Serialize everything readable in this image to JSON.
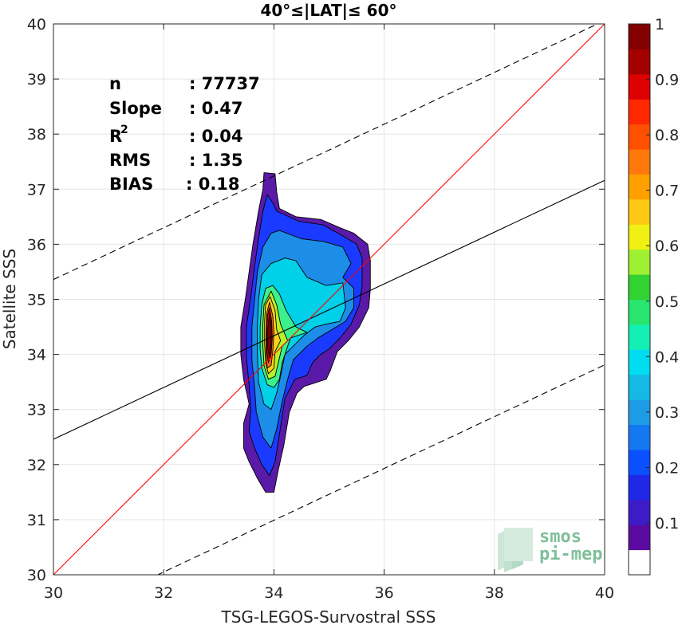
{
  "chart_data": {
    "type": "contour",
    "title": "40°≤|LAT|≤ 60°",
    "xlabel": "TSG-LEGOS-Survostral SSS",
    "ylabel": "Satellite SSS",
    "xlim": [
      30,
      40
    ],
    "ylim": [
      30,
      40
    ],
    "xticks": [
      "30",
      "32",
      "34",
      "36",
      "38",
      "40"
    ],
    "yticks": [
      "30",
      "31",
      "32",
      "33",
      "34",
      "35",
      "36",
      "37",
      "38",
      "39",
      "40"
    ],
    "grid": true,
    "stats": [
      {
        "name": "n",
        "value": ": 77737"
      },
      {
        "name": "Slope",
        "value": ": 0.47"
      },
      {
        "name": "R",
        "sup": "2",
        "value": ": 0.04"
      },
      {
        "name": "RMS",
        "value": ": 1.35"
      },
      {
        "name": "BIAS",
        "value": ": 0.18"
      }
    ],
    "lines": {
      "identity": {
        "color": "#ff0000",
        "slope": 1,
        "intercept": 0
      },
      "fit": {
        "color": "#000000",
        "slope": 0.47,
        "intercept": 18.36
      },
      "fit_upper": {
        "color": "#000000",
        "style": "dashed",
        "slope": 0.47,
        "intercept": 21.26
      },
      "fit_lower": {
        "color": "#000000",
        "style": "dashed",
        "slope": 0.47,
        "intercept": 15.01
      }
    },
    "contour_levels": [
      {
        "level": 0.05,
        "color": "#5a1aa8",
        "points": [
          [
            33.82,
            37.3
          ],
          [
            34.02,
            37.28
          ],
          [
            34.05,
            36.95
          ],
          [
            34.1,
            36.65
          ],
          [
            34.4,
            36.5
          ],
          [
            34.85,
            36.45
          ],
          [
            35.2,
            36.3
          ],
          [
            35.45,
            36.2
          ],
          [
            35.7,
            36.0
          ],
          [
            35.75,
            35.7
          ],
          [
            35.75,
            35.2
          ],
          [
            35.72,
            34.85
          ],
          [
            35.55,
            34.5
          ],
          [
            35.35,
            34.25
          ],
          [
            35.15,
            34.05
          ],
          [
            35.02,
            33.7
          ],
          [
            34.95,
            33.55
          ],
          [
            34.55,
            33.42
          ],
          [
            34.42,
            33.3
          ],
          [
            34.28,
            32.95
          ],
          [
            34.18,
            32.35
          ],
          [
            34.08,
            31.9
          ],
          [
            34.0,
            31.5
          ],
          [
            33.85,
            31.5
          ],
          [
            33.7,
            31.75
          ],
          [
            33.55,
            32.05
          ],
          [
            33.45,
            32.3
          ],
          [
            33.45,
            32.75
          ],
          [
            33.55,
            33.1
          ],
          [
            33.45,
            33.55
          ],
          [
            33.4,
            34.0
          ],
          [
            33.4,
            34.5
          ],
          [
            33.48,
            35.0
          ],
          [
            33.55,
            35.5
          ],
          [
            33.62,
            36.0
          ],
          [
            33.72,
            36.6
          ],
          [
            33.8,
            37.0
          ]
        ]
      },
      {
        "level": 0.15,
        "color": "#1a3bff",
        "points": [
          [
            33.88,
            36.9
          ],
          [
            33.98,
            36.75
          ],
          [
            34.05,
            36.6
          ],
          [
            34.45,
            36.42
          ],
          [
            34.9,
            36.35
          ],
          [
            35.25,
            36.15
          ],
          [
            35.5,
            36.0
          ],
          [
            35.6,
            35.75
          ],
          [
            35.6,
            35.25
          ],
          [
            35.55,
            34.9
          ],
          [
            35.4,
            34.55
          ],
          [
            35.2,
            34.3
          ],
          [
            35.0,
            34.1
          ],
          [
            34.85,
            34.0
          ],
          [
            34.7,
            33.85
          ],
          [
            34.6,
            33.62
          ],
          [
            34.38,
            33.55
          ],
          [
            34.2,
            33.2
          ],
          [
            34.1,
            32.55
          ],
          [
            34.02,
            32.05
          ],
          [
            33.92,
            31.8
          ],
          [
            33.78,
            32.0
          ],
          [
            33.65,
            32.3
          ],
          [
            33.55,
            32.6
          ],
          [
            33.58,
            33.0
          ],
          [
            33.55,
            33.45
          ],
          [
            33.5,
            33.95
          ],
          [
            33.5,
            34.5
          ],
          [
            33.58,
            35.05
          ],
          [
            33.65,
            35.6
          ],
          [
            33.72,
            36.1
          ],
          [
            33.8,
            36.6
          ]
        ]
      },
      {
        "level": 0.25,
        "color": "#1c8ee8",
        "points": [
          [
            34.1,
            36.25
          ],
          [
            34.5,
            36.1
          ],
          [
            34.9,
            36.05
          ],
          [
            35.25,
            35.95
          ],
          [
            35.4,
            35.65
          ],
          [
            35.25,
            35.4
          ],
          [
            35.45,
            35.2
          ],
          [
            35.45,
            34.85
          ],
          [
            35.3,
            34.6
          ],
          [
            35.05,
            34.45
          ],
          [
            34.8,
            34.3
          ],
          [
            34.6,
            34.15
          ],
          [
            34.35,
            33.9
          ],
          [
            34.25,
            33.55
          ],
          [
            34.15,
            33.15
          ],
          [
            34.05,
            32.65
          ],
          [
            33.95,
            32.3
          ],
          [
            33.8,
            32.5
          ],
          [
            33.68,
            32.95
          ],
          [
            33.65,
            33.4
          ],
          [
            33.6,
            33.9
          ],
          [
            33.6,
            34.5
          ],
          [
            33.65,
            35.0
          ],
          [
            33.7,
            35.5
          ],
          [
            33.8,
            35.95
          ],
          [
            33.95,
            36.2
          ]
        ]
      },
      {
        "level": 0.35,
        "color": "#00d0e8",
        "points": [
          [
            34.2,
            35.75
          ],
          [
            34.4,
            35.7
          ],
          [
            34.6,
            35.4
          ],
          [
            34.95,
            35.25
          ],
          [
            35.25,
            35.3
          ],
          [
            35.3,
            34.85
          ],
          [
            35.2,
            34.6
          ],
          [
            34.95,
            34.55
          ],
          [
            34.75,
            34.5
          ],
          [
            34.55,
            34.35
          ],
          [
            34.4,
            34.2
          ],
          [
            34.2,
            34.0
          ],
          [
            34.12,
            33.6
          ],
          [
            34.05,
            33.3
          ],
          [
            33.95,
            33.0
          ],
          [
            33.82,
            33.1
          ],
          [
            33.72,
            33.5
          ],
          [
            33.7,
            34.0
          ],
          [
            33.7,
            34.5
          ],
          [
            33.72,
            35.0
          ],
          [
            33.78,
            35.45
          ],
          [
            33.95,
            35.65
          ]
        ]
      },
      {
        "level": 0.45,
        "color": "#3cf08c",
        "points": [
          [
            33.98,
            35.25
          ],
          [
            34.1,
            35.1
          ],
          [
            34.22,
            34.8
          ],
          [
            34.4,
            34.5
          ],
          [
            34.6,
            34.4
          ],
          [
            34.3,
            34.3
          ],
          [
            34.25,
            34.15
          ],
          [
            34.15,
            33.85
          ],
          [
            34.1,
            33.55
          ],
          [
            34.0,
            33.4
          ],
          [
            33.88,
            33.45
          ],
          [
            33.78,
            33.75
          ],
          [
            33.75,
            34.1
          ],
          [
            33.75,
            34.5
          ],
          [
            33.78,
            34.9
          ],
          [
            33.85,
            35.2
          ]
        ]
      },
      {
        "level": 0.55,
        "color": "#b8f02a",
        "points": [
          [
            33.95,
            35.15
          ],
          [
            34.05,
            34.9
          ],
          [
            34.12,
            34.55
          ],
          [
            34.25,
            34.25
          ],
          [
            34.15,
            34.15
          ],
          [
            34.08,
            33.85
          ],
          [
            34.02,
            33.6
          ],
          [
            33.9,
            33.55
          ],
          [
            33.82,
            33.8
          ],
          [
            33.8,
            34.15
          ],
          [
            33.8,
            34.55
          ],
          [
            33.82,
            34.9
          ]
        ]
      },
      {
        "level": 0.65,
        "color": "#ffd21a",
        "points": [
          [
            33.93,
            35.05
          ],
          [
            34.02,
            34.8
          ],
          [
            34.05,
            34.45
          ],
          [
            34.12,
            34.25
          ],
          [
            34.02,
            34.05
          ],
          [
            34.0,
            33.75
          ],
          [
            33.9,
            33.65
          ],
          [
            33.85,
            33.85
          ],
          [
            33.83,
            34.2
          ],
          [
            33.83,
            34.6
          ],
          [
            33.85,
            34.9
          ]
        ]
      },
      {
        "level": 0.75,
        "color": "#ff6a10",
        "points": [
          [
            33.92,
            34.95
          ],
          [
            33.98,
            34.7
          ],
          [
            34.0,
            34.4
          ],
          [
            33.98,
            34.05
          ],
          [
            33.95,
            33.8
          ],
          [
            33.88,
            33.75
          ],
          [
            33.86,
            34.0
          ],
          [
            33.86,
            34.4
          ],
          [
            33.87,
            34.75
          ]
        ]
      },
      {
        "level": 0.85,
        "color": "#e00000",
        "points": [
          [
            33.92,
            34.85
          ],
          [
            33.96,
            34.6
          ],
          [
            33.97,
            34.3
          ],
          [
            33.95,
            34.0
          ],
          [
            33.9,
            33.85
          ],
          [
            33.87,
            34.05
          ],
          [
            33.87,
            34.4
          ],
          [
            33.88,
            34.7
          ]
        ]
      },
      {
        "level": 0.95,
        "color": "#8b0000",
        "points": [
          [
            33.92,
            34.75
          ],
          [
            33.95,
            34.5
          ],
          [
            33.95,
            34.2
          ],
          [
            33.92,
            33.95
          ],
          [
            33.89,
            34.1
          ],
          [
            33.89,
            34.45
          ]
        ]
      }
    ],
    "colorbar": {
      "colors": [
        "#ffffff",
        "#5a0aa0",
        "#3c1bc8",
        "#1e28e6",
        "#0a50ff",
        "#1478f0",
        "#1e9be6",
        "#14b9e6",
        "#00dcf0",
        "#14f0b4",
        "#28e66e",
        "#32d232",
        "#a0f032",
        "#f0f014",
        "#ffc814",
        "#ffa000",
        "#ff780a",
        "#ff5000",
        "#ff2800",
        "#dc0000",
        "#a50000",
        "#820000"
      ],
      "ticks": [
        "0.1",
        "0.2",
        "0.3",
        "0.4",
        "0.5",
        "0.6",
        "0.7",
        "0.8",
        "0.9",
        "1"
      ]
    },
    "watermark": {
      "line1": "smos",
      "line2": "pi-mep"
    }
  }
}
